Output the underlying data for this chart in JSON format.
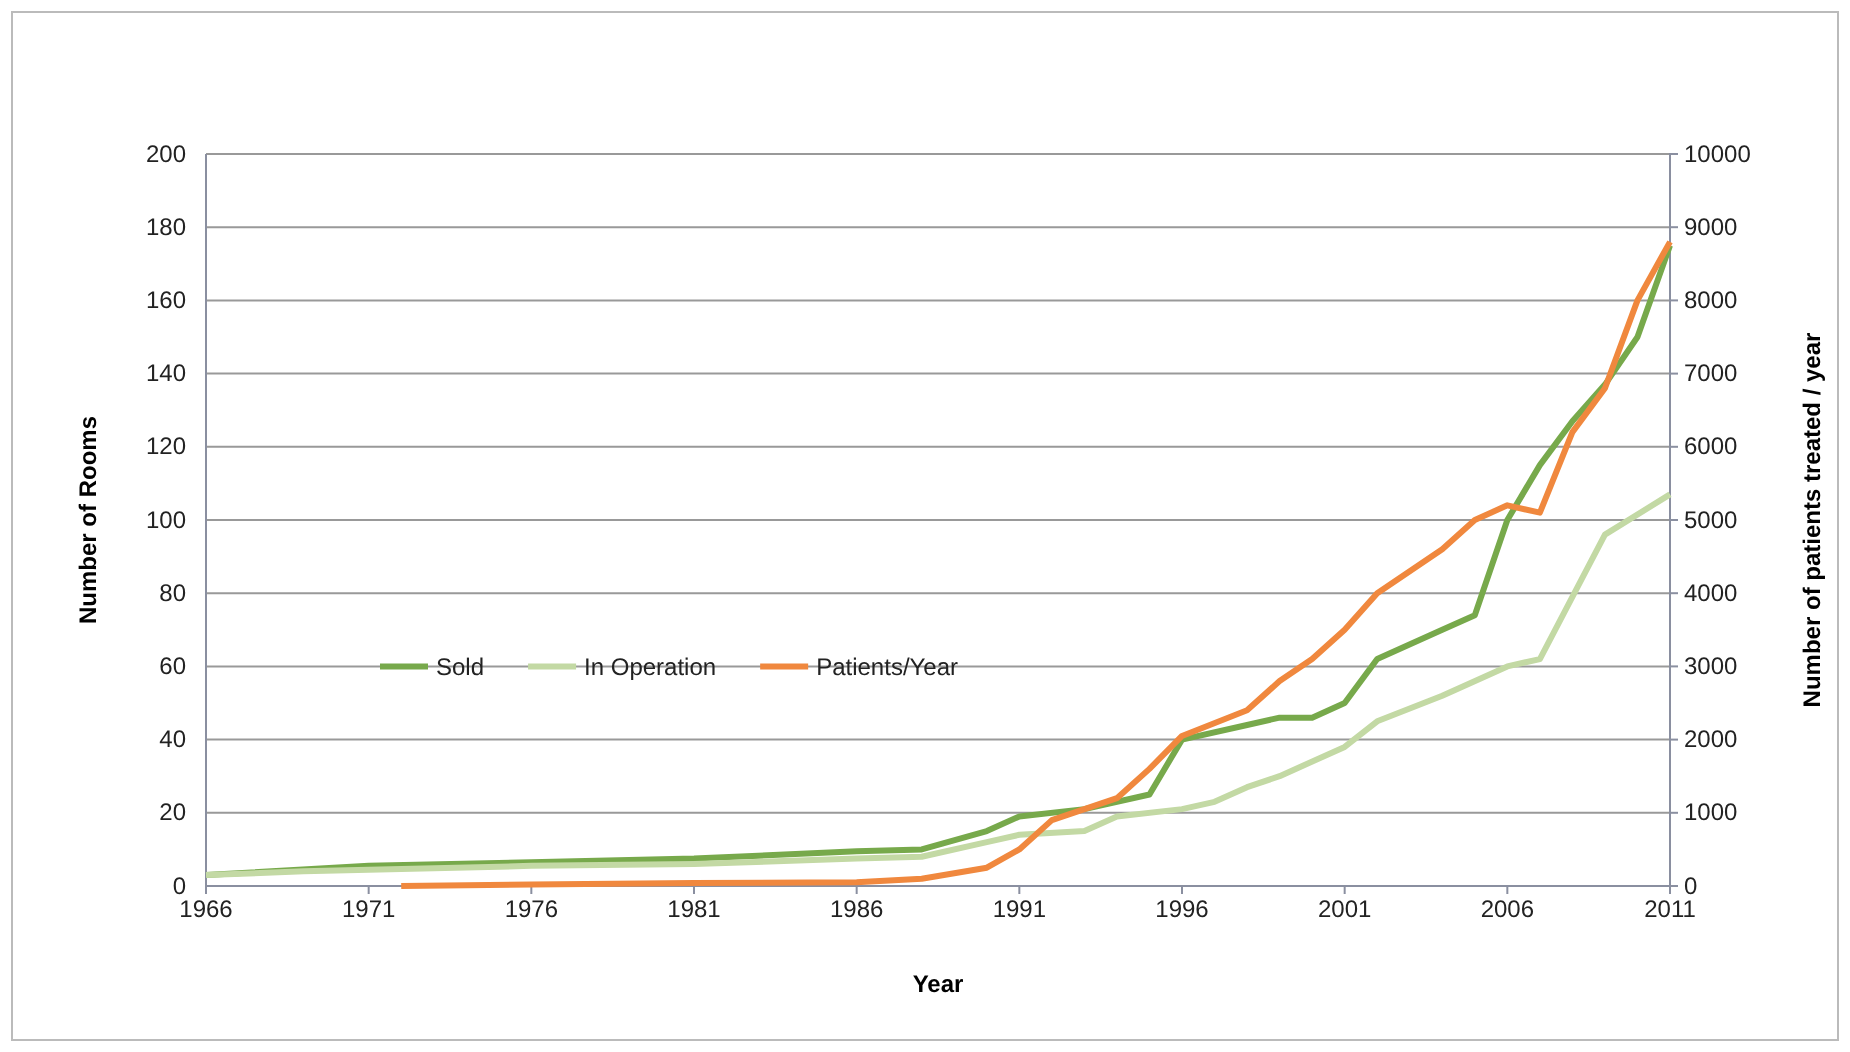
{
  "chart_data": {
    "type": "line",
    "xlabel": "Year",
    "ylabel": "Number of Rooms",
    "y2label": "Number of patients treated / year",
    "xlim": [
      1966,
      2011
    ],
    "xticks": [
      1966,
      1971,
      1976,
      1981,
      1986,
      1991,
      1996,
      2001,
      2006,
      2011
    ],
    "ylim": [
      0,
      200
    ],
    "yticks": [
      0,
      20,
      40,
      60,
      80,
      100,
      120,
      140,
      160,
      180,
      200
    ],
    "y2lim": [
      0,
      10000
    ],
    "y2ticks": [
      0,
      1000,
      2000,
      3000,
      4000,
      5000,
      6000,
      7000,
      8000,
      9000,
      10000
    ],
    "grid": "y",
    "legend": "left",
    "marker": "none",
    "line_style": "solid",
    "series": [
      {
        "name": "Sold",
        "color": "#77a94b",
        "x": [
          1966,
          1971,
          1976,
          1981,
          1986,
          1988,
          1990,
          1991,
          1993,
          1995,
          1996,
          1998,
          1999,
          2000,
          2001,
          2002,
          2004,
          2005,
          2006,
          2007,
          2008,
          2009,
          2010,
          2011
        ],
        "values": [
          3,
          5.5,
          6.5,
          7.5,
          9.5,
          10,
          15,
          19,
          21,
          25,
          40,
          44,
          46,
          46,
          50,
          62,
          70,
          74,
          100,
          115,
          127,
          137,
          150,
          175
        ]
      },
      {
        "name": "In Operation",
        "color": "#c3d9a4",
        "x": [
          1966,
          1969,
          1976,
          1981,
          1986,
          1988,
          1990,
          1991,
          1993,
          1994,
          1996,
          1997,
          1998,
          1999,
          2001,
          2002,
          2004,
          2006,
          2007,
          2009,
          2011
        ],
        "values": [
          3,
          4,
          5.5,
          6,
          7.5,
          8,
          12,
          14,
          15,
          19,
          21,
          23,
          27,
          30,
          38,
          45,
          52,
          60,
          62,
          96,
          107
        ]
      },
      {
        "name": "Patients/Year",
        "color": "#f0883e",
        "axis": "y2",
        "x": [
          1972,
          1976,
          1981,
          1986,
          1988,
          1990,
          1991,
          1992,
          1994,
          1995,
          1996,
          1998,
          1999,
          2000,
          2001,
          2002,
          2004,
          2005,
          2006,
          2007,
          2008,
          2009,
          2010,
          2011
        ],
        "values": [
          0,
          20,
          40,
          50,
          100,
          250,
          500,
          900,
          1200,
          1600,
          2050,
          2400,
          2800,
          3100,
          3500,
          4000,
          4600,
          5000,
          5200,
          5100,
          6200,
          6800,
          8000,
          8800
        ]
      }
    ]
  }
}
